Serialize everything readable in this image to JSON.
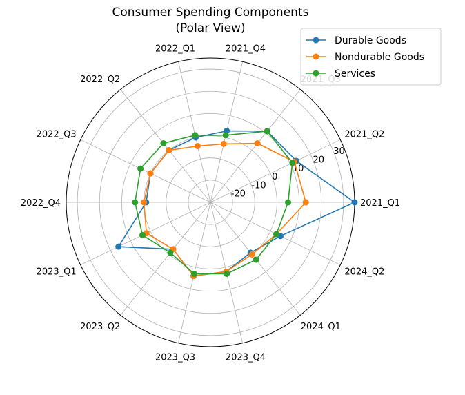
{
  "chart_data": {
    "type": "line",
    "projection": "polar",
    "title": "Consumer Spending Components",
    "subtitle": "(Polar View)",
    "categories": [
      "2021_Q1",
      "2021_Q2",
      "2021_Q3",
      "2021_Q4",
      "2022_Q1",
      "2022_Q2",
      "2022_Q3",
      "2022_Q4",
      "2023_Q1",
      "2023_Q2",
      "2023_Q3",
      "2023_Q4",
      "2024_Q1",
      "2024_Q2"
    ],
    "rlim": [
      -30,
      35
    ],
    "r_ticks": [
      "-20",
      "-10",
      "0",
      "10",
      "20",
      "30"
    ],
    "grid": true,
    "legend_position": "top-right",
    "series": [
      {
        "name": "Durable Goods",
        "color": "#1f77b4",
        "values": [
          35,
          13,
          11,
          3,
          0,
          0,
          0,
          -1,
          16,
          -3,
          4,
          2,
          -1,
          5
        ]
      },
      {
        "name": "Nondurable Goods",
        "color": "#ff7f0e",
        "values": [
          13,
          12,
          4,
          -3,
          -4,
          0,
          0,
          0,
          2,
          -3,
          4,
          2,
          0,
          3
        ]
      },
      {
        "name": "Services",
        "color": "#2ca02c",
        "values": [
          5,
          11,
          11,
          1,
          1,
          4,
          5,
          4,
          4,
          -1,
          3,
          3,
          3,
          3
        ]
      }
    ]
  }
}
